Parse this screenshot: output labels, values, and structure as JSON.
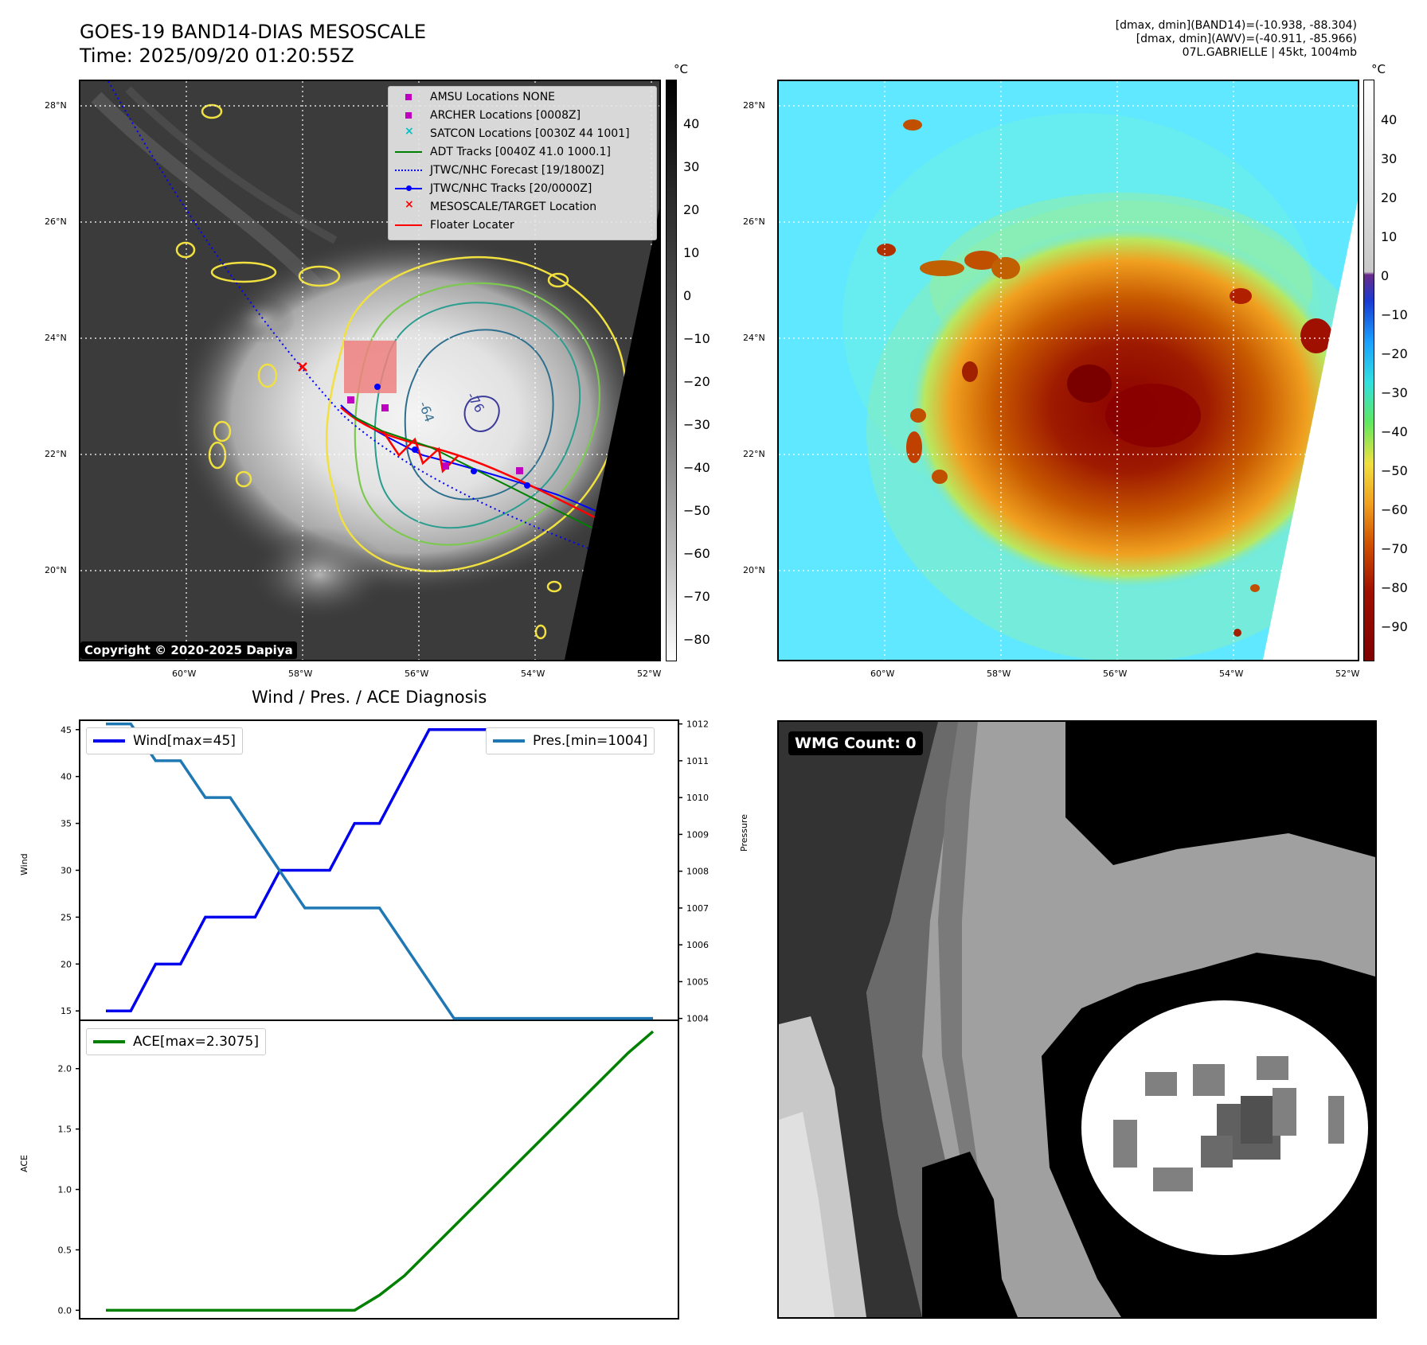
{
  "header": {
    "title_line1": "GOES-19 BAND14-DIAS MESOSCALE",
    "title_line2": "Time: 2025/09/20 01:20:55Z",
    "info_line1": "[dmax, dmin](BAND14)=(-10.938, -88.304)",
    "info_line2": "[dmax, dmin](AWV)=(-40.911, -85.966)",
    "info_line3": "07L.GABRIELLE | 45kt, 1004mb"
  },
  "map_axes": {
    "lat_labels": [
      "28°N",
      "26°N",
      "24°N",
      "22°N",
      "20°N"
    ],
    "lon_labels": [
      "60°W",
      "58°W",
      "56°W",
      "54°W",
      "52°W"
    ]
  },
  "ir_colorbar": {
    "unit": "°C",
    "ticks": [
      "40",
      "30",
      "20",
      "10",
      "0",
      "−10",
      "−20",
      "−30",
      "−40",
      "−50",
      "−60",
      "−70",
      "−80"
    ]
  },
  "awv_colorbar": {
    "unit": "°C",
    "ticks": [
      "40",
      "30",
      "20",
      "10",
      "0",
      "−10",
      "−20",
      "−30",
      "−40",
      "−50",
      "−60",
      "−70",
      "−80",
      "−90"
    ]
  },
  "legend": {
    "items": [
      {
        "label": "AMSU Locations NONE",
        "color": "#c000c0",
        "symbol": "square"
      },
      {
        "label": "ARCHER Locations [0008Z]",
        "color": "#c000c0",
        "symbol": "square"
      },
      {
        "label": "SATCON Locations [0030Z 44 1001]",
        "color": "#00c0c0",
        "symbol": "x"
      },
      {
        "label": "ADT Tracks [0040Z 41.0 1000.1]",
        "color": "#008000",
        "symbol": "line"
      },
      {
        "label": "JTWC/NHC Forecast [19/1800Z]",
        "color": "#0000ff",
        "symbol": "dotted"
      },
      {
        "label": "JTWC/NHC Tracks [20/0000Z]",
        "color": "#0000ff",
        "symbol": "line-dot"
      },
      {
        "label": "MESOSCALE/TARGET Location",
        "color": "#ff0000",
        "symbol": "x"
      },
      {
        "label": "Floater Locater",
        "color": "#ff0000",
        "symbol": "line"
      }
    ]
  },
  "contour_labels": [
    "-64",
    "-76"
  ],
  "copyright": "Copyright © 2020-2025 Dapiya",
  "wmg_label": "WMG Count: 0",
  "chart_data": [
    {
      "type": "line",
      "title": "Wind / Pres. / ACE Diagnosis",
      "ylabel": "Wind",
      "y2label": "Pressure",
      "ylim": [
        14,
        46
      ],
      "y2lim": [
        1003.95,
        1012.1
      ],
      "yticks": [
        15,
        20,
        25,
        30,
        35,
        40,
        45
      ],
      "y2ticks": [
        1004,
        1005,
        1006,
        1007,
        1008,
        1009,
        1010,
        1011,
        1012
      ],
      "x": [
        0,
        1,
        2,
        3,
        4,
        5,
        6,
        7,
        8,
        9,
        10,
        11,
        12,
        13,
        14,
        15,
        16,
        17,
        18,
        19,
        20,
        21,
        22
      ],
      "series": [
        {
          "name": "Wind[max=45]",
          "color": "#0000ee",
          "axis": "left",
          "values": [
            15,
            15,
            20,
            20,
            25,
            25,
            25,
            30,
            30,
            30,
            35,
            35,
            40,
            45,
            45,
            45,
            45,
            45,
            45,
            45,
            45,
            45,
            45
          ]
        },
        {
          "name": "Pres.[min=1004]",
          "color": "#1f77b4",
          "axis": "right",
          "values": [
            1012,
            1012,
            1011,
            1011,
            1010,
            1010,
            1009,
            1008,
            1007,
            1007,
            1007,
            1007,
            1006,
            1005,
            1004,
            1004,
            1004,
            1004,
            1004,
            1004,
            1004,
            1004,
            1004
          ]
        }
      ]
    },
    {
      "type": "line",
      "ylabel": "ACE",
      "ylim": [
        -0.07,
        2.4
      ],
      "yticks": [
        "0.0",
        "0.5",
        "1.0",
        "1.5",
        "2.0"
      ],
      "x": [
        0,
        1,
        2,
        3,
        4,
        5,
        6,
        7,
        8,
        9,
        10,
        11,
        12,
        13,
        14,
        15,
        16,
        17,
        18,
        19,
        20,
        21,
        22
      ],
      "series": [
        {
          "name": "ACE[max=2.3075]",
          "color": "#008000",
          "values": [
            0,
            0,
            0,
            0,
            0,
            0,
            0,
            0,
            0,
            0,
            0,
            0.125,
            0.285,
            0.49,
            0.695,
            0.9,
            1.105,
            1.31,
            1.515,
            1.72,
            1.925,
            2.13,
            2.3075
          ]
        }
      ]
    }
  ]
}
